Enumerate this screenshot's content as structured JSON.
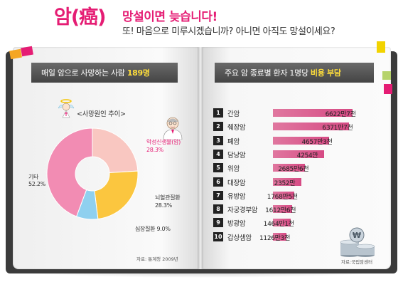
{
  "header": {
    "title_big": "암(癌)",
    "title_line": "망설이면 늦습니다!",
    "subtitle": "또! 마음으로 미루시겠습니까? 아니면 아직도 망설이세요?"
  },
  "left_page": {
    "ribbon_text": "매일 암으로 사망하는 사람",
    "ribbon_highlight": "189명",
    "chart_title": "<사망원인 추이>",
    "source": "자료: 통계청 2009년"
  },
  "right_page": {
    "ribbon_text": "주요 암 종료별 환자 1명당",
    "ribbon_highlight": "비용 부담",
    "source": "자료:국립암센터"
  },
  "colors": {
    "accent": "#e51d74",
    "bar": "#d64a84",
    "ribbon": "#4a4a4a"
  },
  "chart_data": [
    {
      "type": "pie",
      "title": "<사망원인 추이>",
      "slices": [
        {
          "label": "기타",
          "value": 52.2,
          "value_label": "52.2%",
          "color": "#f28cb3"
        },
        {
          "label": "악성신생물(암)",
          "value": 28.3,
          "value_label": "28.3%",
          "color": "#f9c7c1"
        },
        {
          "label": "뇌혈관질환",
          "value": 28.3,
          "value_label": "28.3%",
          "color": "#fbc63f"
        },
        {
          "label": "심장질환",
          "value": 9.0,
          "value_label": "9.0%",
          "color": "#8fd0ef"
        }
      ]
    },
    {
      "type": "bar",
      "title": "주요 암 종료별 환자 1명당 비용 부담",
      "categories": [
        "간암",
        "췌장암",
        "폐암",
        "담낭암",
        "위암",
        "대장암",
        "유방암",
        "자궁경부암",
        "방광암",
        "갑상샘암"
      ],
      "ranks": [
        "1",
        "2",
        "3",
        "4",
        "5",
        "6",
        "7",
        "8",
        "9",
        "10"
      ],
      "values": [
        6622,
        6371,
        4657,
        4254,
        2685,
        2352,
        1768,
        1612,
        1464,
        1126
      ],
      "value_labels": [
        "6622만7천",
        "6371만7천",
        "4657만3천",
        "4254만",
        "2685만6천",
        "2352만",
        "1768만5천",
        "1612만6천",
        "1464만1천",
        "1126만3천"
      ],
      "unit": "원",
      "xlim": [
        0,
        7000
      ]
    }
  ]
}
